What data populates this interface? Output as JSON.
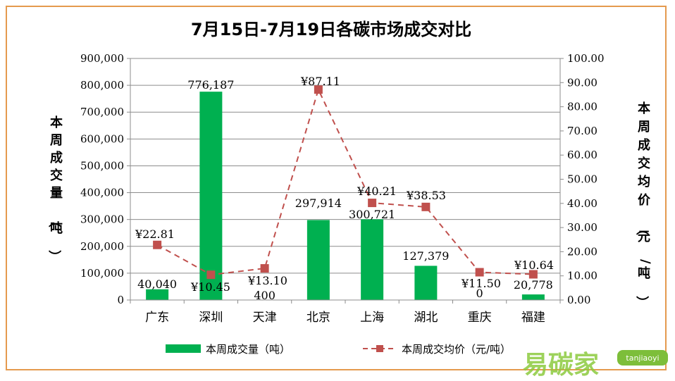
{
  "chart_data": {
    "type": "bar",
    "title": "7月15日-7月19日各碳市场成交对比",
    "categories": [
      "广东",
      "深圳",
      "天津",
      "北京",
      "上海",
      "湖北",
      "重庆",
      "福建"
    ],
    "series": [
      {
        "name": "本周成交量（吨）",
        "type": "bar",
        "axis": "left",
        "color": "#00B050",
        "values": [
          40040,
          776187,
          400,
          297914,
          300721,
          127379,
          0,
          20778
        ],
        "labels": [
          "40,040",
          "776,187",
          "400",
          "297,914",
          "300,721",
          "127,379",
          "0",
          "20,778"
        ]
      },
      {
        "name": "本周成交均价（元/吨）",
        "type": "line",
        "axis": "right",
        "color": "#C0504D",
        "values": [
          22.81,
          10.45,
          13.1,
          87.11,
          40.21,
          38.53,
          11.5,
          10.64
        ],
        "labels": [
          "¥22.81",
          "¥10.45",
          "¥13.10",
          "¥87.11",
          "¥40.21",
          "¥38.53",
          "¥11.50",
          "¥10.64"
        ]
      }
    ],
    "yleft": {
      "label": "本周成交量（吨）",
      "ylim": [
        0,
        900000
      ],
      "ticks": [
        "0",
        "100,000",
        "200,000",
        "300,000",
        "400,000",
        "500,000",
        "600,000",
        "700,000",
        "800,000",
        "900,000"
      ]
    },
    "yright": {
      "label": "本周成交均价（元/吨）",
      "ylim": [
        0,
        100
      ],
      "ticks": [
        "0.00",
        "10.00",
        "20.00",
        "30.00",
        "40.00",
        "50.00",
        "60.00",
        "70.00",
        "80.00",
        "90.00",
        "100.00"
      ]
    },
    "grid": true,
    "legend": "bottom"
  },
  "watermark": {
    "text": "易碳家",
    "sub": "tanjiaoyi"
  }
}
